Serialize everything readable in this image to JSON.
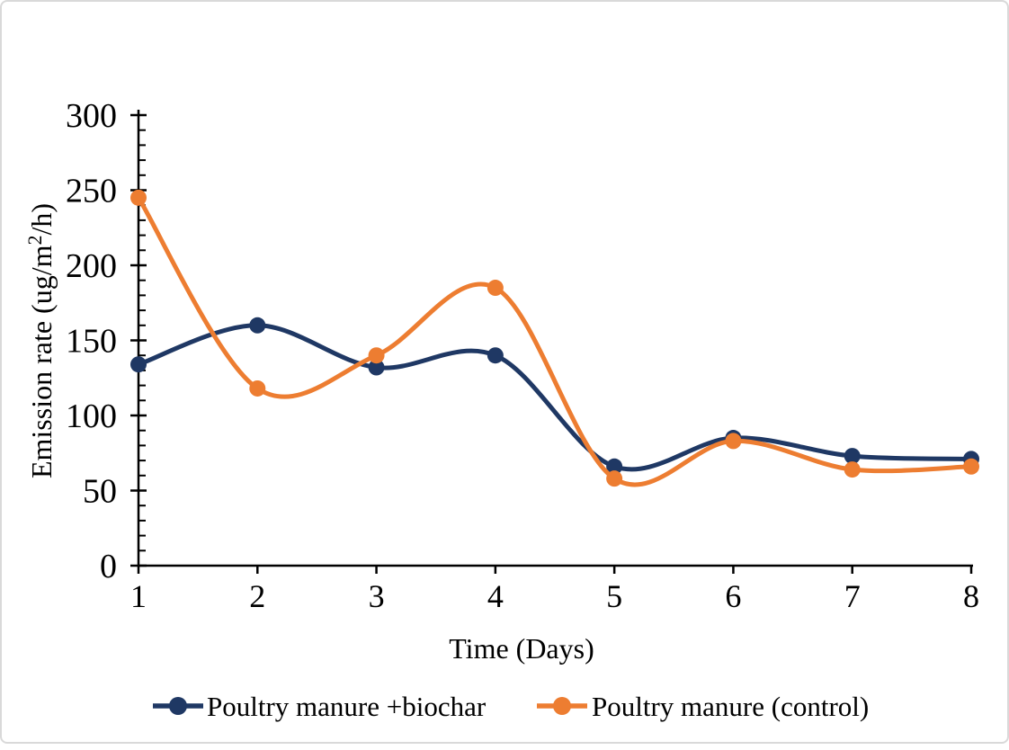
{
  "frame": {
    "background": "#ffffff",
    "border_color": "#d9d9d9"
  },
  "chart_data": {
    "type": "line",
    "title": "",
    "xlabel": "Time (Days)",
    "ylabel": "Emission rate (ug/m2/h)",
    "ylabel_parts": {
      "prefix": "Emission rate (ug/m",
      "superscript": "2",
      "suffix": "/h)"
    },
    "x": [
      1,
      2,
      3,
      4,
      5,
      6,
      7,
      8
    ],
    "x_tick_labels": [
      "1",
      "2",
      "3",
      "4",
      "5",
      "6",
      "7",
      "8"
    ],
    "ylim": [
      0,
      300
    ],
    "y_major_step": 50,
    "y_minor_step": 10,
    "y_tick_labels": [
      "0",
      "50",
      "100",
      "150",
      "200",
      "250",
      "300"
    ],
    "grid": false,
    "smooth": true,
    "axis_color": "#000000",
    "legend_position": "bottom",
    "series": [
      {
        "id": "poultry-manure-biochar",
        "name": "Poultry manure +biochar",
        "color": "#1F3864",
        "values": [
          134,
          160,
          132,
          140,
          66,
          85,
          73,
          71
        ]
      },
      {
        "id": "poultry-manure-control",
        "name": "Poultry manure (control)",
        "color": "#ED7D31",
        "values": [
          245,
          118,
          140,
          185,
          58,
          83,
          64,
          66
        ]
      }
    ]
  }
}
